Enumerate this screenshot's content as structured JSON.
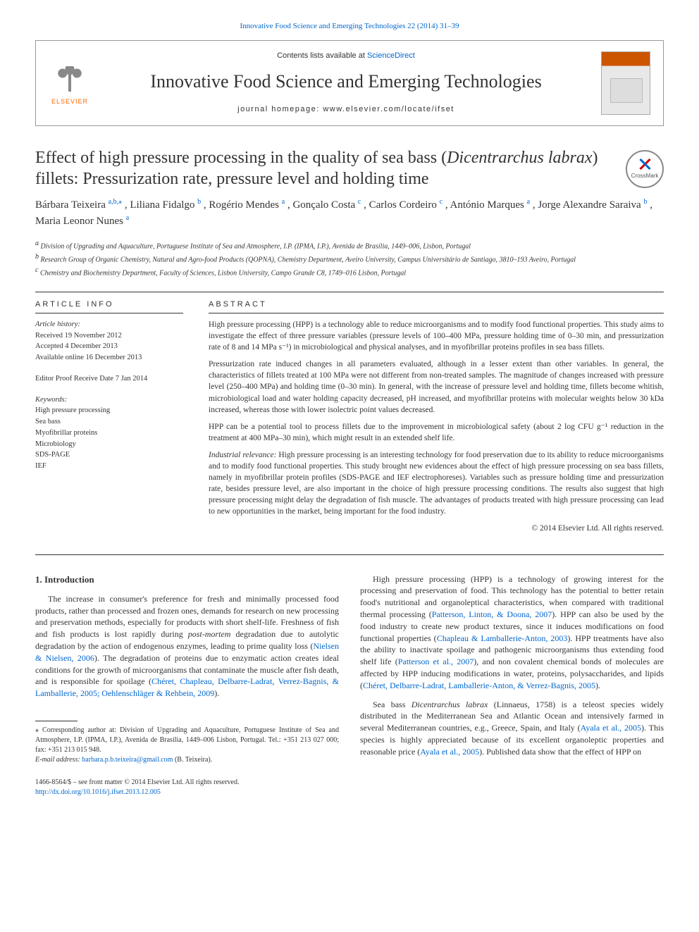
{
  "top_link": {
    "journal": "Innovative Food Science and Emerging Technologies 22 (2014) 31–39"
  },
  "header": {
    "contents_prefix": "Contents lists available at ",
    "contents_link": "ScienceDirect",
    "journal_name": "Innovative Food Science and Emerging Technologies",
    "homepage_prefix": "journal homepage: ",
    "homepage_url": "www.elsevier.com/locate/ifset",
    "publisher": "ELSEVIER"
  },
  "crossmark": "CrossMark",
  "title": {
    "pre": "Effect of high pressure processing in the quality of sea bass (",
    "italic": "Dicentrarchus labrax",
    "post": ") fillets: Pressurization rate, pressure level and holding time"
  },
  "authors": [
    {
      "name": "Bárbara Teixeira ",
      "sup": "a,b,",
      "star": "⁎"
    },
    {
      "name": ", Liliana Fidalgo ",
      "sup": "b"
    },
    {
      "name": ", Rogério Mendes ",
      "sup": "a"
    },
    {
      "name": ", Gonçalo Costa ",
      "sup": "c"
    },
    {
      "name": ", Carlos Cordeiro ",
      "sup": "c"
    },
    {
      "name": ", António Marques ",
      "sup": "a"
    },
    {
      "name": ", Jorge Alexandre Saraiva ",
      "sup": "b"
    },
    {
      "name": ", Maria Leonor Nunes ",
      "sup": "a"
    }
  ],
  "affiliations": [
    {
      "sup": "a",
      "text": " Division of Upgrading and Aquaculture, Portuguese Institute of Sea and Atmosphere, I.P. (IPMA, I.P.), Avenida de Brasília, 1449–006, Lisbon, Portugal"
    },
    {
      "sup": "b",
      "text": " Research Group of Organic Chemistry, Natural and Agro-food Products (QOPNA), Chemistry Department, Aveiro University, Campus Universitário de Santiago, 3810–193 Aveiro, Portugal"
    },
    {
      "sup": "c",
      "text": " Chemistry and Biochemistry Department, Faculty of Sciences, Lisbon University, Campo Grande C8, 1749–016 Lisbon, Portugal"
    }
  ],
  "article_info": {
    "head": "article info",
    "history_label": "Article history:",
    "received": "Received 19 November 2012",
    "accepted": "Accepted 4 December 2013",
    "online": "Available online 16 December 2013",
    "editor": "Editor Proof Receive Date 7 Jan 2014",
    "keywords_label": "Keywords:",
    "keywords": [
      "High pressure processing",
      "Sea bass",
      "Myofibrillar proteins",
      "Microbiology",
      "SDS-PAGE",
      "IEF"
    ]
  },
  "abstract": {
    "head": "abstract",
    "p1": "High pressure processing (HPP) is a technology able to reduce microorganisms and to modify food functional properties. This study aims to investigate the effect of three pressure variables (pressure levels of 100–400 MPa, pressure holding time of 0–30 min, and pressurization rate of 8 and 14 MPa s⁻¹) in microbiological and physical analyses, and in myofibrillar proteins profiles in sea bass fillets.",
    "p2": "Pressurization rate induced changes in all parameters evaluated, although in a lesser extent than other variables. In general, the characteristics of fillets treated at 100 MPa were not different from non-treated samples. The magnitude of changes increased with pressure level (250–400 MPa) and holding time (0–30 min). In general, with the increase of pressure level and holding time, fillets become whitish, microbiological load and water holding capacity decreased, pH increased, and myofibrillar proteins with molecular weights below 30 kDa increased, whereas those with lower isolectric point values decreased.",
    "p3": "HPP can be a potential tool to process fillets due to the improvement in microbiological safety (about 2 log CFU g⁻¹ reduction in the treatment at 400 MPa–30 min), which might result in an extended shelf life.",
    "p4_label": "Industrial relevance:",
    "p4": " High pressure processing is an interesting technology for food preservation due to its ability to reduce microorganisms and to modify food functional properties. This study brought new evidences about the effect of high pressure processing on sea bass fillets, namely in myofibrillar protein profiles (SDS-PAGE and IEF electrophoreses). Variables such as pressure holding time and pressurization rate, besides pressure level, are also important in the choice of high pressure processing conditions. The results also suggest that high pressure processing might delay the degradation of fish muscle. The advantages of products treated with high pressure processing can lead to new opportunities in the market, being important for the food industry.",
    "copyright": "© 2014 Elsevier Ltd. All rights reserved."
  },
  "body": {
    "section_heading": "1. Introduction",
    "p1a": "The increase in consumer's preference for fresh and minimally processed food products, rather than processed and frozen ones, demands for research on new processing and preservation methods, especially for products with short shelf-life. Freshness of fish and fish products is lost rapidly during ",
    "p1b_italic": "post-mortem",
    "p1c": " degradation due to autolytic degradation by the action of endogenous enzymes, leading to prime quality loss (",
    "p1_ref1": "Nielsen & Nielsen, 2006",
    "p1d": "). The degradation of proteins due to enzymatic action creates ideal conditions for the growth of microorganisms that contaminate the muscle after fish death, and is responsible for spoilage (",
    "p1_ref2": "Chéret, Chapleau, Delbarre-Ladrat, Verrez-Bagnis, & Lamballerie, 2005; Oehlenschläger & Rehbein, 2009",
    "p1e": ").",
    "p2a": "High pressure processing (HPP) is a technology of growing interest for the processing and preservation of food. This technology has the potential to better retain food's nutritional and organoleptical characteristics, when compared with traditional thermal processing (",
    "p2_ref1": "Patterson, Linton, & Doona, 2007",
    "p2b": "). HPP can also be used by the food industry to create new product textures, since it induces modifications on food functional properties (",
    "p2_ref2": "Chapleau & Lamballerie-Anton, 2003",
    "p2c": "). HPP treatments have also the ability to inactivate spoilage and pathogenic microorganisms thus extending food shelf life (",
    "p2_ref3": "Patterson et al., 2007",
    "p2d": "), and non covalent chemical bonds of molecules are affected by HPP inducing modifications in water, proteins, polysaccharides, and lipids (",
    "p2_ref4": "Chéret, Delbarre-Ladrat, Lamballerie-Anton, & Verrez-Bagnis, 2005",
    "p2e": ").",
    "p3a": "Sea bass ",
    "p3_italic": "Dicentrarchus labrax",
    "p3b": " (Linnaeus, 1758) is a teleost species widely distributed in the Mediterranean Sea and Atlantic Ocean and intensively farmed in several Mediterranean countries, e.g., Greece, Spain, and Italy (",
    "p3_ref1": "Ayala et al., 2005",
    "p3c": "). This species is highly appreciated because of its excellent organoleptic properties and reasonable price (",
    "p3_ref2": "Ayala et al., 2005",
    "p3d": "). Published data show that the effect of HPP on"
  },
  "footnotes": {
    "corr_star": "⁎",
    "corr": " Corresponding author at: Division of Upgrading and Aquaculture, Portuguese Institute of Sea and Atmosphere, I.P. (IPMA, I.P.), Avenida de Brasília, 1449–006 Lisbon, Portugal. Tel.: +351 213 027 000; fax: +351 213 015 948.",
    "email_label": "E-mail address: ",
    "email": "barbara.p.b.teixeira@gmail.com",
    "email_suffix": " (B. Teixeira)."
  },
  "bottom": {
    "issn": "1466-8564/$ – see front matter © 2014 Elsevier Ltd. All rights reserved.",
    "doi": "http://dx.doi.org/10.1016/j.ifset.2013.12.005"
  },
  "colors": {
    "link": "#0066cc",
    "text": "#333333",
    "elsevier_orange": "#ff6600",
    "cover_orange": "#cc5500"
  }
}
